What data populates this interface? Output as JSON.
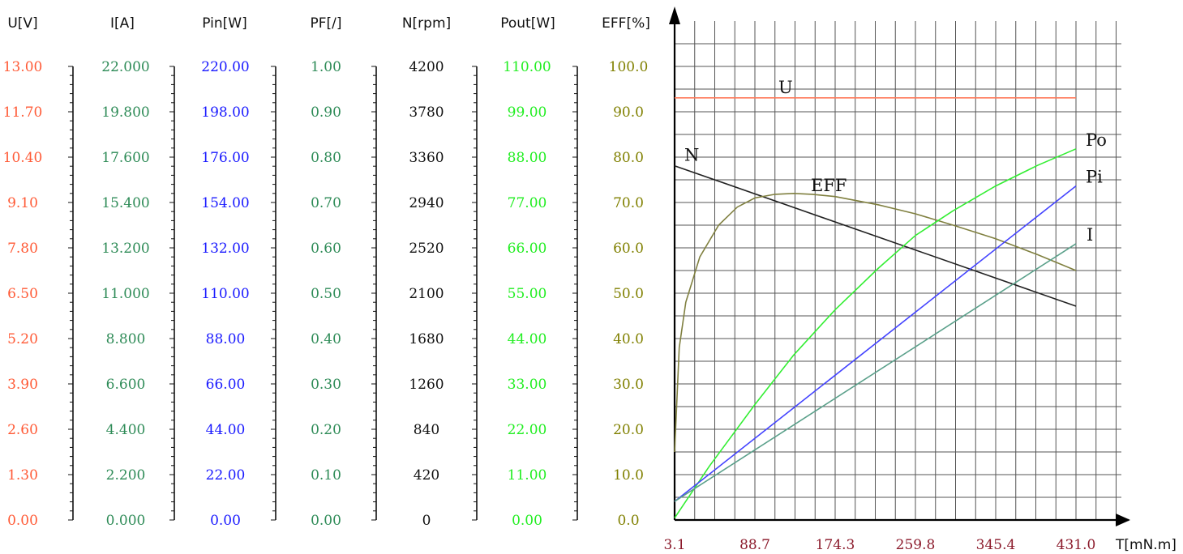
{
  "chart_data": {
    "type": "line",
    "x_label": "T[mN.m]",
    "x_range": [
      3.1,
      431.0
    ],
    "x_ticks": [
      "3.1",
      "88.7",
      "174.3",
      "259.8",
      "345.4",
      "431.0"
    ],
    "axes": [
      {
        "id": "U",
        "header": "U[V]",
        "color": "#ff5a36",
        "max": 13.0,
        "ticks": [
          "0.00",
          "1.30",
          "2.60",
          "3.90",
          "5.20",
          "6.50",
          "7.80",
          "9.10",
          "10.40",
          "11.70",
          "13.00"
        ]
      },
      {
        "id": "I",
        "header": "I[A]",
        "color": "#2e8b57",
        "max": 22.0,
        "ticks": [
          "0.000",
          "2.200",
          "4.400",
          "6.600",
          "8.800",
          "11.000",
          "13.200",
          "15.400",
          "17.600",
          "19.800",
          "22.000"
        ]
      },
      {
        "id": "Pin",
        "header": "Pin[W]",
        "color": "#1a1aff",
        "max": 220.0,
        "ticks": [
          "0.00",
          "22.00",
          "44.00",
          "66.00",
          "88.00",
          "110.00",
          "132.00",
          "154.00",
          "176.00",
          "198.00",
          "220.00"
        ]
      },
      {
        "id": "PF",
        "header": "PF[/]",
        "color": "#2e8b57",
        "max": 1.0,
        "ticks": [
          "0.00",
          "0.10",
          "0.20",
          "0.30",
          "0.40",
          "0.50",
          "0.60",
          "0.70",
          "0.80",
          "0.90",
          "1.00"
        ]
      },
      {
        "id": "N",
        "header": "N[rpm]",
        "color": "#111111",
        "max": 4200,
        "ticks": [
          "0",
          "420",
          "840",
          "1260",
          "1680",
          "2100",
          "2520",
          "2940",
          "3360",
          "3780",
          "4200"
        ]
      },
      {
        "id": "Pout",
        "header": "Pout[W]",
        "color": "#22ee22",
        "max": 110.0,
        "ticks": [
          "0.00",
          "11.00",
          "22.00",
          "33.00",
          "44.00",
          "55.00",
          "66.00",
          "77.00",
          "88.00",
          "99.00",
          "110.00"
        ]
      },
      {
        "id": "EFF",
        "header": "EFF[%]",
        "color": "#808000",
        "max": 100.0,
        "ticks": [
          "0.0",
          "10.0",
          "20.0",
          "30.0",
          "40.0",
          "50.0",
          "60.0",
          "70.0",
          "80.0",
          "90.0",
          "100.0"
        ]
      }
    ],
    "series": [
      {
        "name": "U",
        "axis": "U",
        "color": "#ff7a5a",
        "x": [
          3.1,
          431.0
        ],
        "y": [
          12.1,
          12.1
        ]
      },
      {
        "name": "N",
        "axis": "N",
        "color": "#222222",
        "x": [
          3.1,
          431.0
        ],
        "y": [
          3280,
          1980
        ]
      },
      {
        "name": "EFF",
        "axis": "EFF",
        "color": "#808040",
        "x": [
          3.1,
          8,
          15,
          30,
          50,
          70,
          88.7,
          110,
          130,
          150,
          174.3,
          220,
          259.8,
          300,
          345.4,
          390,
          431.0
        ],
        "y": [
          15,
          38,
          48,
          58,
          65,
          69,
          71,
          71.8,
          72,
          71.8,
          71.3,
          69.5,
          67.5,
          65,
          62,
          58.5,
          55
        ]
      },
      {
        "name": "Po",
        "axis": "Pout",
        "color": "#33ee33",
        "x": [
          3.1,
          40,
          88.7,
          130,
          174.3,
          220,
          259.8,
          300,
          345.4,
          390,
          431.0
        ],
        "y": [
          0.5,
          13,
          28,
          40,
          51,
          61,
          69,
          75,
          81,
          86,
          90
        ]
      },
      {
        "name": "Pi",
        "axis": "Pin",
        "color": "#4444ff",
        "x": [
          3.1,
          431.0
        ],
        "y": [
          9,
          162
        ]
      },
      {
        "name": "I",
        "axis": "I",
        "color": "#5aa08a",
        "x": [
          3.1,
          431.0
        ],
        "y": [
          0.9,
          13.4
        ]
      }
    ]
  }
}
